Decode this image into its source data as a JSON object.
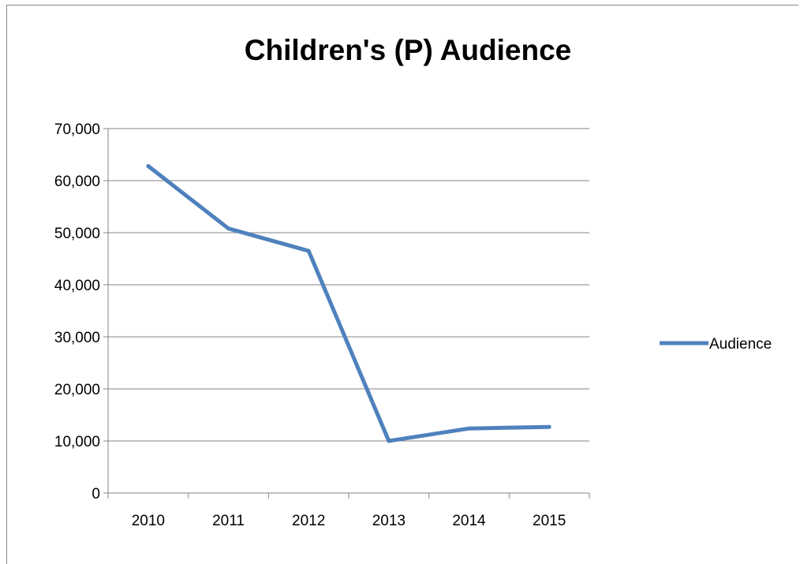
{
  "chart_data": {
    "type": "line",
    "title": "Children's (P) Audience",
    "xlabel": "",
    "ylabel": "",
    "categories": [
      "2010",
      "2011",
      "2012",
      "2013",
      "2014",
      "2015"
    ],
    "series": [
      {
        "name": "Audience",
        "values": [
          62800,
          50800,
          46500,
          10000,
          12400,
          12700
        ],
        "color": "#4f81bd"
      }
    ],
    "ylim": [
      0,
      70000
    ],
    "y_ticks": [
      0,
      10000,
      20000,
      30000,
      40000,
      50000,
      60000,
      70000
    ],
    "y_tick_labels": [
      "0",
      "10,000",
      "20,000",
      "30,000",
      "40,000",
      "50,000",
      "60,000",
      "70,000"
    ],
    "grid": "horizontal",
    "legend_position": "right"
  }
}
